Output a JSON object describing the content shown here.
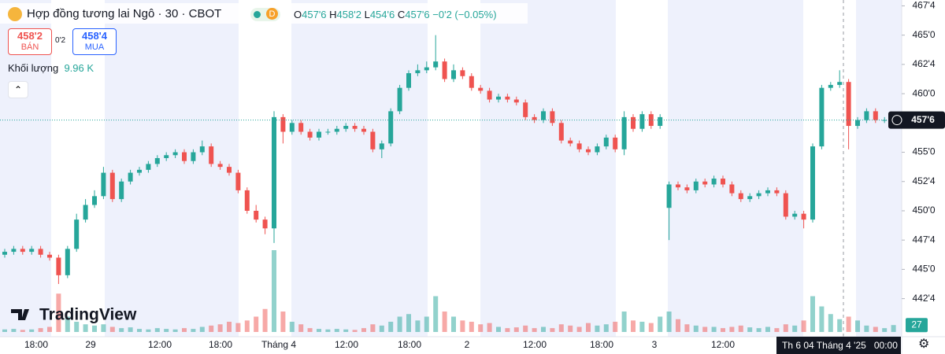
{
  "chart_data": {
    "type": "candlestick",
    "up_color": "#26a69a",
    "down_color": "#ef5350",
    "ylim": [
      439.25,
      468.0
    ],
    "yticks": [
      {
        "value": 467.5,
        "label": "467'4"
      },
      {
        "value": 465.0,
        "label": "465'0"
      },
      {
        "value": 462.5,
        "label": "462'4"
      },
      {
        "value": 460.0,
        "label": "460'0"
      },
      {
        "value": 455.0,
        "label": "455'0"
      },
      {
        "value": 452.5,
        "label": "452'4"
      },
      {
        "value": 450.0,
        "label": "450'0"
      },
      {
        "value": 447.5,
        "label": "447'4"
      },
      {
        "value": 445.0,
        "label": "445'0"
      },
      {
        "value": 442.5,
        "label": "442'4"
      }
    ],
    "xticks": [
      "18:00",
      "29",
      "12:00",
      "18:00",
      "Tháng 4",
      "12:00",
      "18:00",
      "2",
      "12:00",
      "18:00",
      "3",
      "12:00"
    ],
    "last_price": {
      "value": 457.75,
      "label": "457'6"
    },
    "open": [
      446.25,
      446.5,
      446.75,
      446.5,
      446.75,
      446.25,
      446.0,
      444.5,
      446.75,
      449.25,
      450.5,
      451.25,
      453.25,
      451.0,
      452.5,
      453.25,
      453.5,
      454.0,
      454.5,
      454.75,
      455.0,
      454.25,
      455.0,
      455.5,
      454.0,
      453.75,
      453.25,
      451.75,
      450.0,
      449.25,
      448.5,
      458.0,
      456.75,
      457.5,
      456.75,
      456.25,
      456.75,
      456.75,
      457.0,
      457.25,
      457.0,
      456.75,
      455.25,
      455.75,
      458.5,
      460.5,
      461.75,
      462.0,
      462.25,
      462.75,
      461.25,
      462.0,
      461.5,
      460.5,
      460.25,
      459.5,
      459.75,
      459.5,
      459.25,
      458.0,
      457.75,
      458.5,
      457.5,
      456.0,
      455.75,
      455.25,
      455.0,
      455.5,
      456.25,
      455.25,
      458.0,
      457.0,
      458.25,
      457.25,
      450.25,
      452.25,
      452.0,
      451.75,
      452.5,
      452.25,
      452.75,
      452.25,
      451.5,
      451.0,
      451.25,
      451.5,
      451.75,
      451.5,
      449.5,
      449.75,
      449.25,
      455.5,
      460.5,
      460.75,
      461.0,
      457.25,
      457.75,
      458.5,
      457.75,
      457.75
    ],
    "high": [
      446.75,
      447.0,
      447.0,
      447.0,
      447.0,
      446.5,
      446.25,
      447.0,
      449.75,
      451.0,
      451.75,
      453.75,
      453.5,
      452.75,
      453.5,
      453.75,
      454.25,
      454.75,
      455.0,
      455.25,
      455.25,
      455.25,
      456.0,
      455.75,
      454.25,
      454.0,
      453.5,
      452.0,
      450.5,
      449.5,
      458.5,
      458.25,
      457.75,
      457.75,
      457.0,
      457.0,
      457.0,
      457.25,
      457.5,
      457.5,
      457.25,
      457.0,
      456.0,
      458.75,
      460.75,
      462.0,
      462.5,
      462.75,
      465.0,
      463.0,
      462.5,
      462.25,
      461.75,
      460.75,
      460.5,
      460.0,
      460.0,
      459.75,
      459.5,
      458.25,
      458.75,
      458.75,
      457.75,
      456.25,
      456.0,
      455.5,
      455.75,
      456.5,
      456.5,
      458.5,
      458.25,
      458.5,
      458.5,
      458.25,
      452.5,
      452.5,
      452.25,
      452.75,
      452.75,
      453.0,
      453.0,
      452.5,
      451.75,
      451.5,
      451.75,
      452.0,
      452.0,
      451.75,
      450.0,
      450.0,
      455.75,
      460.75,
      461.0,
      462.0,
      461.25,
      458.0,
      458.75,
      458.75,
      458.0,
      458.0
    ],
    "low": [
      446.0,
      446.25,
      446.25,
      446.25,
      446.0,
      445.75,
      443.75,
      444.25,
      446.5,
      449.0,
      450.25,
      451.0,
      450.75,
      450.75,
      452.25,
      453.0,
      453.25,
      453.75,
      454.25,
      454.5,
      454.0,
      454.0,
      454.75,
      453.75,
      453.5,
      453.0,
      451.5,
      449.75,
      449.0,
      448.0,
      447.25,
      455.75,
      456.5,
      456.5,
      456.0,
      456.0,
      456.5,
      456.5,
      456.75,
      456.75,
      456.5,
      455.0,
      454.5,
      455.5,
      458.25,
      460.25,
      461.5,
      461.75,
      462.0,
      461.0,
      461.0,
      461.25,
      460.25,
      460.0,
      459.25,
      459.25,
      459.25,
      459.0,
      457.75,
      457.5,
      457.5,
      457.25,
      455.75,
      455.5,
      455.0,
      454.75,
      454.75,
      455.25,
      455.0,
      454.75,
      456.75,
      456.75,
      457.0,
      457.0,
      447.5,
      451.75,
      451.5,
      451.5,
      452.0,
      452.0,
      452.0,
      451.25,
      450.75,
      450.75,
      451.0,
      451.25,
      451.25,
      449.25,
      449.25,
      448.5,
      449.0,
      455.25,
      460.25,
      460.5,
      455.25,
      457.0,
      457.5,
      457.5,
      457.5,
      457.5
    ],
    "close": [
      446.5,
      446.75,
      446.5,
      446.75,
      446.25,
      446.0,
      444.5,
      446.75,
      449.25,
      450.5,
      451.25,
      453.25,
      451.0,
      452.5,
      453.25,
      453.5,
      454.0,
      454.5,
      454.75,
      455.0,
      454.25,
      455.0,
      455.5,
      454.0,
      453.75,
      453.25,
      451.75,
      450.0,
      449.25,
      448.5,
      458.0,
      456.75,
      457.5,
      456.75,
      456.25,
      456.75,
      456.75,
      457.0,
      457.25,
      457.0,
      456.75,
      455.25,
      455.75,
      458.5,
      460.5,
      461.75,
      462.0,
      462.25,
      462.75,
      461.25,
      462.0,
      461.5,
      460.5,
      460.25,
      459.5,
      459.75,
      459.5,
      459.25,
      458.0,
      457.75,
      458.5,
      457.5,
      456.0,
      455.75,
      455.25,
      455.0,
      455.5,
      456.25,
      455.25,
      458.0,
      457.0,
      458.25,
      457.25,
      458.0,
      452.25,
      452.0,
      451.75,
      452.5,
      452.25,
      452.75,
      452.25,
      451.5,
      451.0,
      451.25,
      451.5,
      451.75,
      451.5,
      449.5,
      449.75,
      449.25,
      455.5,
      460.5,
      460.75,
      461.0,
      457.25,
      457.75,
      458.5,
      457.75,
      457.75,
      457.75
    ],
    "volume": [
      10,
      12,
      8,
      10,
      15,
      20,
      150,
      60,
      40,
      30,
      25,
      30,
      20,
      15,
      18,
      12,
      10,
      15,
      12,
      10,
      15,
      12,
      20,
      25,
      30,
      40,
      35,
      45,
      60,
      90,
      320,
      80,
      40,
      30,
      15,
      12,
      10,
      12,
      10,
      8,
      15,
      30,
      25,
      40,
      60,
      70,
      45,
      60,
      140,
      80,
      60,
      45,
      40,
      30,
      35,
      20,
      15,
      18,
      25,
      15,
      20,
      15,
      30,
      25,
      20,
      35,
      25,
      30,
      40,
      80,
      45,
      40,
      35,
      60,
      80,
      50,
      30,
      25,
      20,
      20,
      15,
      20,
      25,
      18,
      15,
      20,
      15,
      30,
      25,
      45,
      140,
      100,
      70,
      50,
      60,
      45,
      25,
      20,
      15,
      27
    ]
  },
  "header": {
    "title": "Hợp đồng tương lai Ngô · 30 · CBOT",
    "badge": "D",
    "ohlc": [
      "O",
      "457'6",
      "H",
      "458'2",
      "L",
      "454'6",
      "C",
      "457'6"
    ],
    "change": "−0'2 (−0.05%)",
    "sell_price": "458'2",
    "sell_label": "BÁN",
    "spread": "0'2",
    "buy_price": "458'4",
    "buy_label": "MUA",
    "volume_label": "Khối lượng",
    "volume_value": "9.96 K",
    "logo": "TradingView",
    "crosshair_date": "Th 6 04 Tháng 4 '25",
    "crosshair_time": "00:00"
  }
}
